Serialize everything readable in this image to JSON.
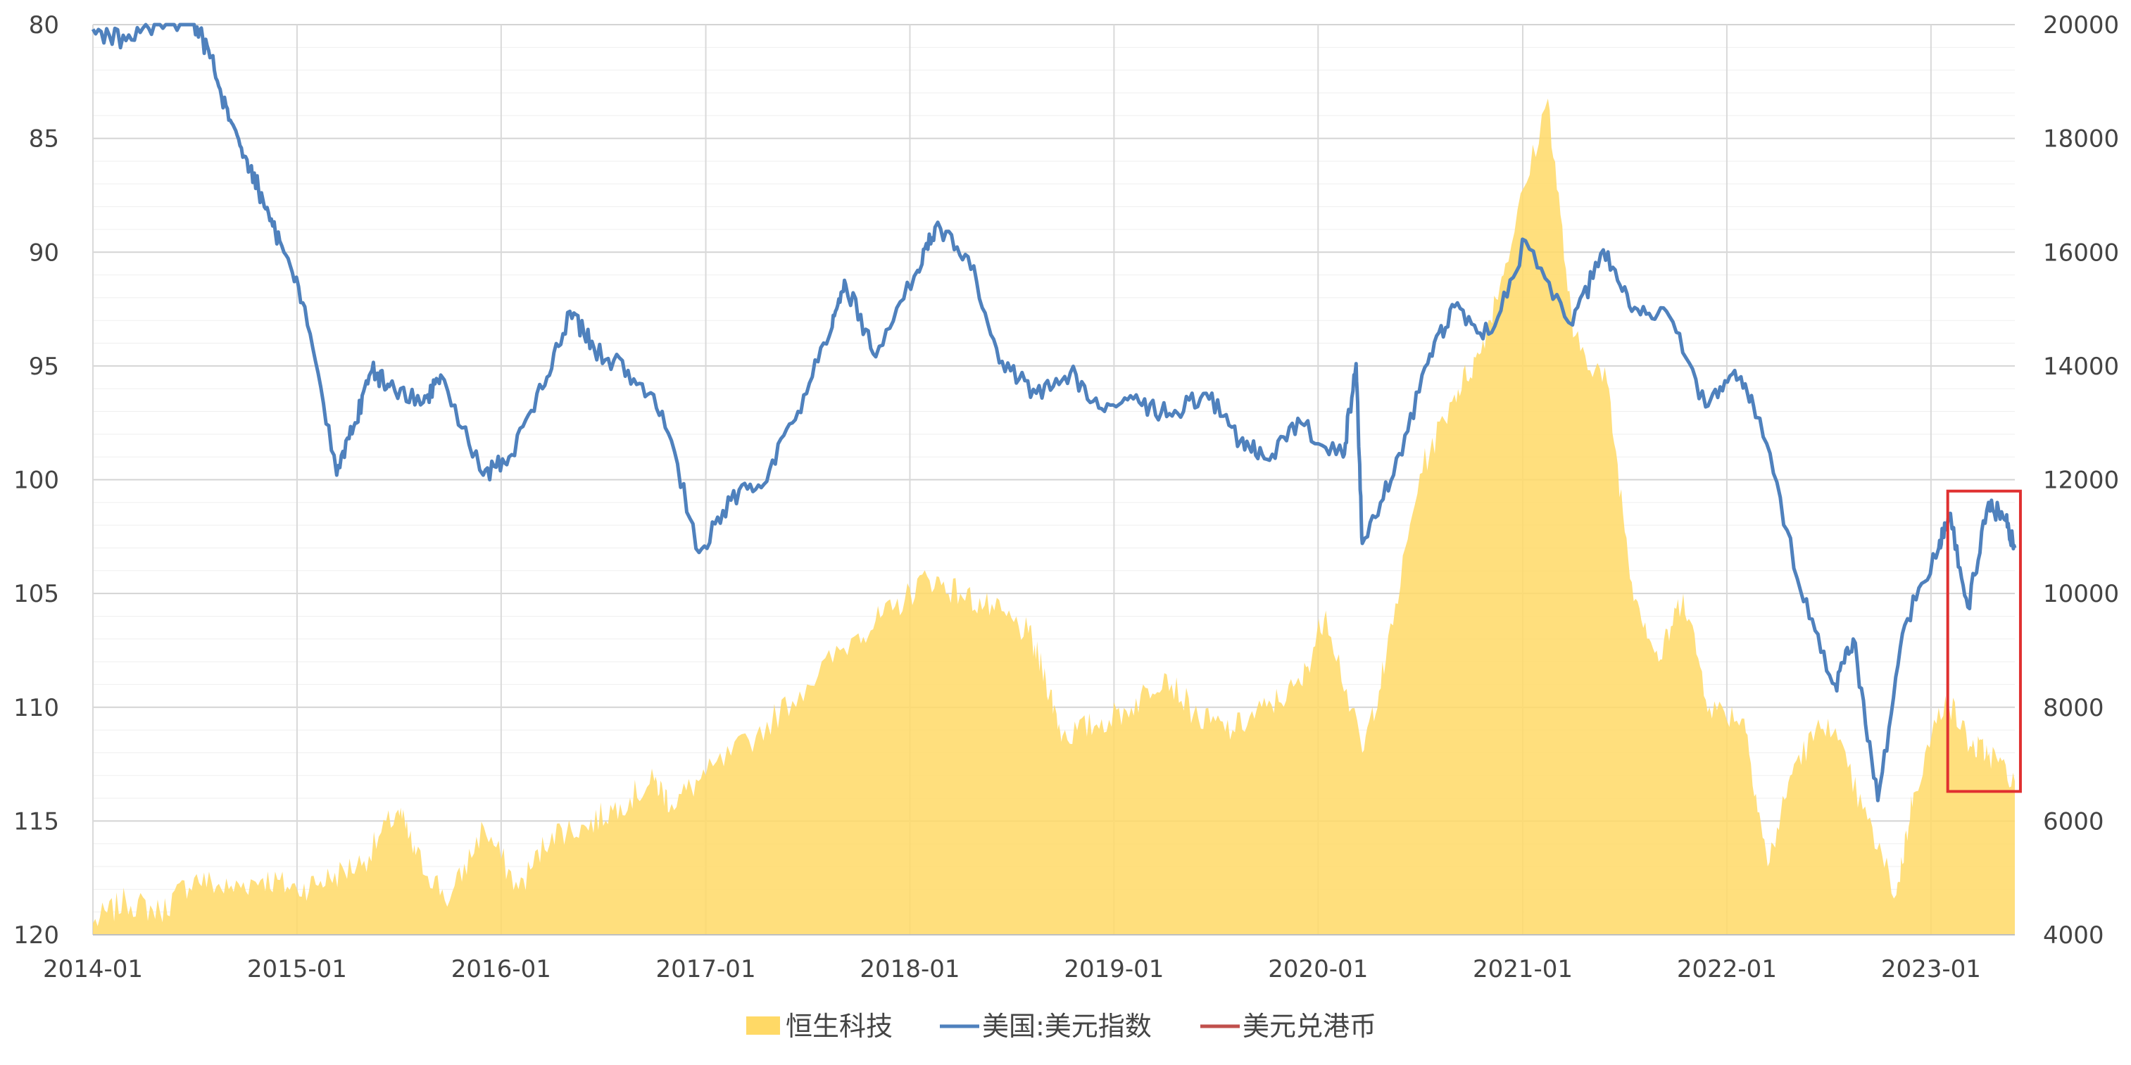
{
  "chart_data": {
    "type": "area+line",
    "title": "",
    "xlabel": "",
    "ylabel": "",
    "x_axis": {
      "tick_labels": [
        "2014-01",
        "2015-01",
        "2016-01",
        "2017-01",
        "2018-01",
        "2019-01",
        "2020-01",
        "2021-01",
        "2022-01",
        "2023-01"
      ],
      "range": [
        "2014-01-01",
        "2023-05-31"
      ]
    },
    "y_left": {
      "inverted": true,
      "range": [
        80,
        120
      ],
      "tick_labels": [
        "80",
        "85",
        "90",
        "95",
        "100",
        "105",
        "110",
        "115",
        "120"
      ]
    },
    "y_right": {
      "range": [
        4000,
        20000
      ],
      "tick_labels": [
        "20000",
        "18000",
        "16000",
        "14000",
        "12000",
        "10000",
        "8000",
        "6000",
        "4000"
      ]
    },
    "grid": true,
    "legend_position": "bottom",
    "series": [
      {
        "name": "恒生科技",
        "type": "area",
        "axis": "right",
        "color": "#FFD966",
        "points": [
          [
            "2014-01-01",
            4200
          ],
          [
            "2014-03-01",
            4600
          ],
          [
            "2014-05-01",
            4400
          ],
          [
            "2014-07-01",
            5000
          ],
          [
            "2014-09-01",
            4800
          ],
          [
            "2014-11-01",
            5000
          ],
          [
            "2015-01-01",
            4800
          ],
          [
            "2015-03-01",
            5000
          ],
          [
            "2015-05-01",
            5300
          ],
          [
            "2015-07-01",
            6200
          ],
          [
            "2015-08-01",
            5400
          ],
          [
            "2015-10-01",
            4600
          ],
          [
            "2015-12-01",
            5900
          ],
          [
            "2016-02-01",
            4800
          ],
          [
            "2016-04-01",
            5800
          ],
          [
            "2016-06-01",
            5900
          ],
          [
            "2016-08-01",
            6300
          ],
          [
            "2016-10-01",
            6700
          ],
          [
            "2016-11-01",
            6300
          ],
          [
            "2017-01-01",
            6800
          ],
          [
            "2017-04-01",
            7500
          ],
          [
            "2017-07-01",
            8400
          ],
          [
            "2017-10-01",
            9300
          ],
          [
            "2017-12-01",
            9700
          ],
          [
            "2018-02-01",
            10300
          ],
          [
            "2018-04-01",
            10000
          ],
          [
            "2018-06-01",
            9700
          ],
          [
            "2018-08-01",
            9300
          ],
          [
            "2018-09-01",
            8500
          ],
          [
            "2018-10-01",
            7500
          ],
          [
            "2018-12-01",
            7700
          ],
          [
            "2019-02-01",
            8000
          ],
          [
            "2019-04-01",
            8600
          ],
          [
            "2019-06-01",
            7800
          ],
          [
            "2019-08-01",
            7600
          ],
          [
            "2019-10-01",
            8000
          ],
          [
            "2019-12-01",
            8400
          ],
          [
            "2020-01-15",
            9700
          ],
          [
            "2020-03-20",
            7200
          ],
          [
            "2020-05-01",
            8800
          ],
          [
            "2020-07-01",
            12100
          ],
          [
            "2020-09-01",
            13500
          ],
          [
            "2020-10-15",
            14200
          ],
          [
            "2020-12-01",
            15800
          ],
          [
            "2021-02-15",
            18700
          ],
          [
            "2021-04-01",
            14500
          ],
          [
            "2021-06-01",
            13700
          ],
          [
            "2021-07-15",
            10200
          ],
          [
            "2021-09-01",
            8800
          ],
          [
            "2021-10-15",
            10000
          ],
          [
            "2021-12-01",
            8000
          ],
          [
            "2022-02-01",
            7800
          ],
          [
            "2022-03-15",
            5200
          ],
          [
            "2022-05-01",
            7000
          ],
          [
            "2022-07-01",
            7800
          ],
          [
            "2022-09-01",
            6200
          ],
          [
            "2022-10-31",
            4700
          ],
          [
            "2022-12-01",
            6500
          ],
          [
            "2023-01-27",
            8200
          ],
          [
            "2023-03-15",
            7300
          ],
          [
            "2023-04-15",
            7200
          ],
          [
            "2023-05-31",
            6700
          ]
        ]
      },
      {
        "name": "美国:美元指数",
        "type": "line",
        "axis": "left",
        "color": "#4F81BD",
        "points": [
          [
            "2014-01-01",
            80.2
          ],
          [
            "2014-03-01",
            80.7
          ],
          [
            "2014-05-01",
            79.8
          ],
          [
            "2014-07-01",
            80.0
          ],
          [
            "2014-08-01",
            81.4
          ],
          [
            "2014-09-01",
            84.2
          ],
          [
            "2014-10-01",
            85.8
          ],
          [
            "2014-11-01",
            87.7
          ],
          [
            "2014-12-01",
            89.5
          ],
          [
            "2015-01-15",
            92.4
          ],
          [
            "2015-03-13",
            99.8
          ],
          [
            "2015-04-15",
            97.5
          ],
          [
            "2015-05-15",
            95.2
          ],
          [
            "2015-06-15",
            95.9
          ],
          [
            "2015-08-15",
            96.6
          ],
          [
            "2015-09-15",
            95.4
          ],
          [
            "2015-11-30",
            99.8
          ],
          [
            "2016-01-15",
            99.0
          ],
          [
            "2016-03-15",
            96.0
          ],
          [
            "2016-05-03",
            92.6
          ],
          [
            "2016-06-15",
            94.2
          ],
          [
            "2016-08-15",
            95.2
          ],
          [
            "2016-10-15",
            97.0
          ],
          [
            "2016-12-20",
            103.2
          ],
          [
            "2017-02-15",
            100.9
          ],
          [
            "2017-04-15",
            100.2
          ],
          [
            "2017-06-15",
            97.0
          ],
          [
            "2017-08-15",
            93.3
          ],
          [
            "2017-09-08",
            91.4
          ],
          [
            "2017-11-01",
            94.6
          ],
          [
            "2018-01-15",
            90.8
          ],
          [
            "2018-02-15",
            88.9
          ],
          [
            "2018-04-15",
            90.2
          ],
          [
            "2018-06-15",
            94.8
          ],
          [
            "2018-08-15",
            96.2
          ],
          [
            "2018-10-15",
            95.3
          ],
          [
            "2018-12-15",
            97.0
          ],
          [
            "2019-02-15",
            96.6
          ],
          [
            "2019-04-15",
            97.2
          ],
          [
            "2019-06-15",
            96.2
          ],
          [
            "2019-08-15",
            98.3
          ],
          [
            "2019-10-01",
            99.1
          ],
          [
            "2019-12-01",
            97.5
          ],
          [
            "2020-02-15",
            99.0
          ],
          [
            "2020-03-09",
            94.9
          ],
          [
            "2020-03-20",
            102.8
          ],
          [
            "2020-05-15",
            99.8
          ],
          [
            "2020-07-15",
            94.9
          ],
          [
            "2020-09-01",
            92.4
          ],
          [
            "2020-11-01",
            93.6
          ],
          [
            "2021-01-06",
            89.5
          ],
          [
            "2021-03-31",
            93.2
          ],
          [
            "2021-05-25",
            89.9
          ],
          [
            "2021-07-15",
            92.6
          ],
          [
            "2021-09-15",
            92.6
          ],
          [
            "2021-11-24",
            96.8
          ],
          [
            "2022-01-15",
            95.2
          ],
          [
            "2022-03-01",
            97.3
          ],
          [
            "2022-05-13",
            104.9
          ],
          [
            "2022-07-14",
            109.0
          ],
          [
            "2022-08-15",
            107.0
          ],
          [
            "2022-09-28",
            114.1
          ],
          [
            "2022-11-15",
            106.4
          ],
          [
            "2023-01-15",
            103.0
          ],
          [
            "2023-02-02",
            101.5
          ],
          [
            "2023-03-08",
            105.6
          ],
          [
            "2023-04-14",
            101.0
          ],
          [
            "2023-05-15",
            101.8
          ],
          [
            "2023-05-31",
            103.0
          ]
        ]
      },
      {
        "name": "美元兑港币",
        "type": "line",
        "axis": "right",
        "color": "#C0504D",
        "points": []
      }
    ],
    "annotations": [
      {
        "type": "rectangle",
        "color": "#E03030",
        "x_range": [
          "2023-01-31",
          "2023-06-10"
        ],
        "y_left_range": [
          100.5,
          113.7
        ]
      }
    ]
  }
}
